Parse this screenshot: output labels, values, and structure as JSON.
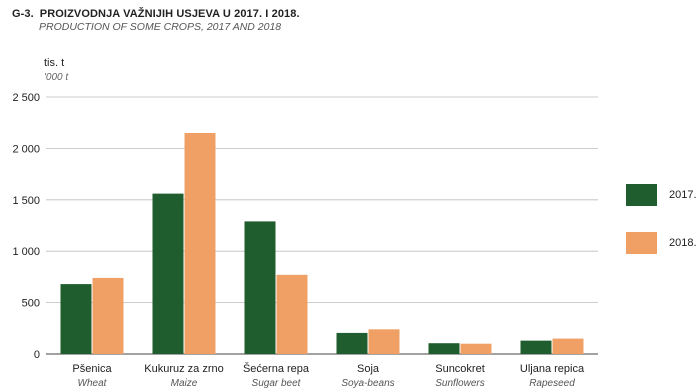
{
  "title": {
    "number": "G-3.",
    "text": "PROIZVODNJA VAŽNIJIH USJEVA U 2017. I 2018.",
    "subtitle": "PRODUCTION OF SOME CROPS, 2017 AND 2018"
  },
  "chart_data": {
    "type": "bar",
    "yunit": "tis. t",
    "yunit_en": "'000 t",
    "ylim": [
      0,
      2500
    ],
    "yticks": [
      0,
      500,
      1000,
      1500,
      2000,
      2500
    ],
    "ytick_labels": [
      "0",
      "500",
      "1 000",
      "1 500",
      "2 000",
      "2 500"
    ],
    "categories": [
      "Pšenica",
      "Kukuruz za zrno",
      "Šećerna repa",
      "Soja",
      "Suncokret",
      "Uljana repica"
    ],
    "categories_en": [
      "Wheat",
      "Maize",
      "Sugar beet",
      "Soya-beans",
      "Sunflowers",
      "Rapeseed"
    ],
    "series": [
      {
        "name": "2017.",
        "color": "#1f5c2e",
        "values": [
          680,
          1560,
          1290,
          205,
          105,
          130
        ]
      },
      {
        "name": "2018.",
        "color": "#f0a064",
        "values": [
          740,
          2150,
          770,
          240,
          100,
          150
        ]
      }
    ],
    "grid": true,
    "legend_position": "right"
  }
}
